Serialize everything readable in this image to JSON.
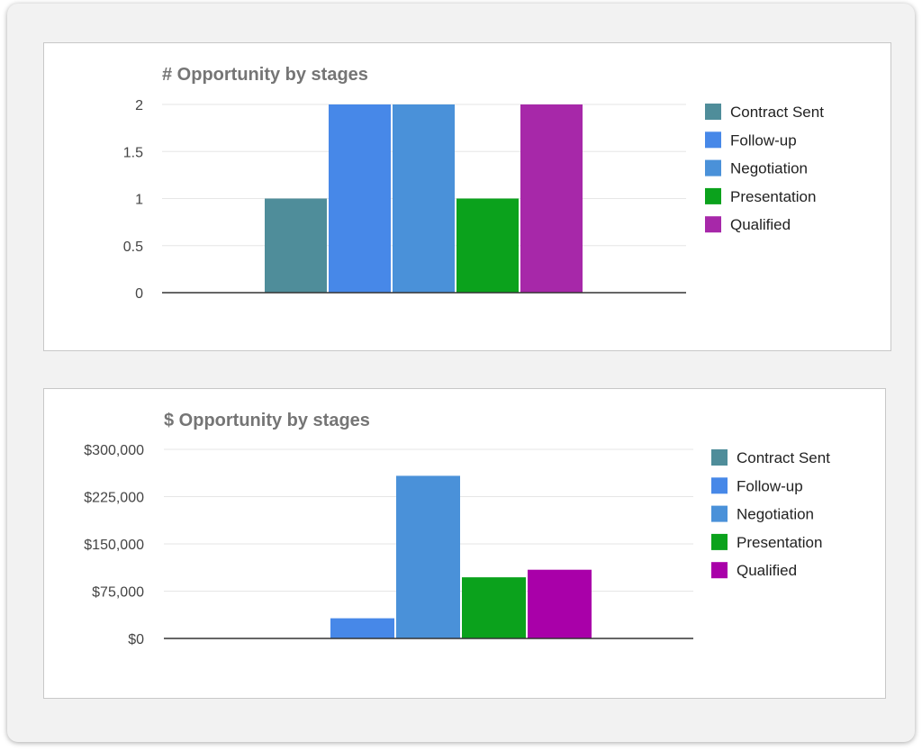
{
  "chart_data": [
    {
      "type": "bar",
      "title": "# Opportunity by stages",
      "xlabel": "",
      "ylabel": "",
      "ylim": [
        0,
        2
      ],
      "yticks": [
        {
          "value": 0,
          "label": "0"
        },
        {
          "value": 0.5,
          "label": "0.5"
        },
        {
          "value": 1,
          "label": "1"
        },
        {
          "value": 1.5,
          "label": "1.5"
        },
        {
          "value": 2,
          "label": "2"
        }
      ],
      "grid": true,
      "legend_position": "right",
      "series": [
        {
          "name": "Contract Sent",
          "value": 1,
          "color": "#4f8d9a"
        },
        {
          "name": "Follow-up",
          "value": 2,
          "color": "#4788e8"
        },
        {
          "name": "Negotiation",
          "value": 2,
          "color": "#4a91d9"
        },
        {
          "name": "Presentation",
          "value": 1,
          "color": "#0ba21c"
        },
        {
          "name": "Qualified",
          "value": 2,
          "color": "#a728a9"
        }
      ]
    },
    {
      "type": "bar",
      "title": "$ Opportunity by stages",
      "xlabel": "",
      "ylabel": "",
      "ylim": [
        0,
        300000
      ],
      "yticks": [
        {
          "value": 0,
          "label": "$0"
        },
        {
          "value": 75000,
          "label": "$75,000"
        },
        {
          "value": 150000,
          "label": "$150,000"
        },
        {
          "value": 225000,
          "label": "$225,000"
        },
        {
          "value": 300000,
          "label": "$300,000"
        }
      ],
      "grid": true,
      "legend_position": "right",
      "series": [
        {
          "name": "Contract Sent",
          "value": 0,
          "color": "#4f8d9a"
        },
        {
          "name": "Follow-up",
          "value": 32000,
          "color": "#4788e8"
        },
        {
          "name": "Negotiation",
          "value": 258000,
          "color": "#4a91d9"
        },
        {
          "name": "Presentation",
          "value": 97000,
          "color": "#0ba21c"
        },
        {
          "name": "Qualified",
          "value": 109000,
          "color": "#a900a9"
        }
      ]
    }
  ]
}
